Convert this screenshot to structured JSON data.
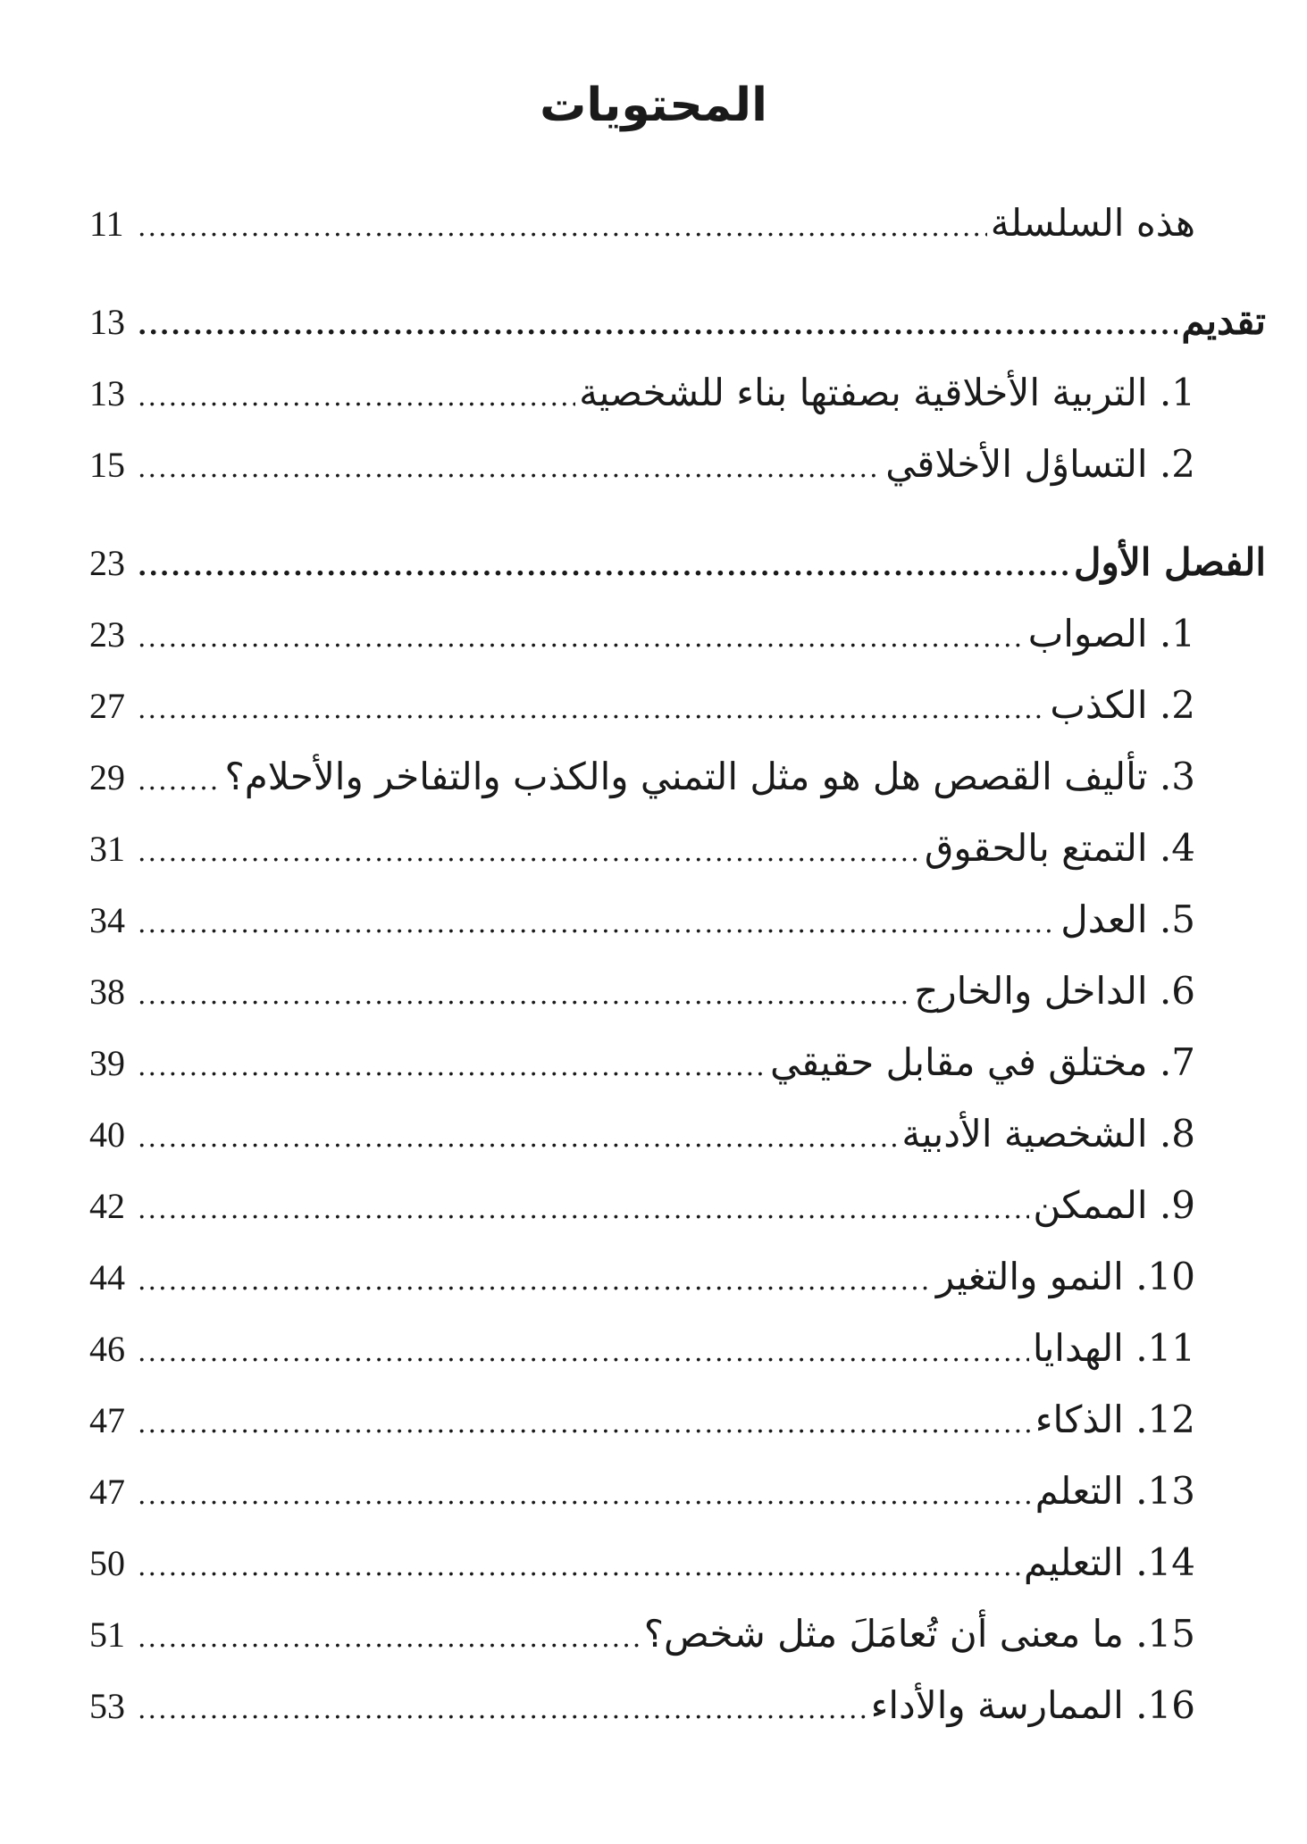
{
  "title": "المحتويات",
  "entries": [
    {
      "label": "هذه السلسلة",
      "page": "11",
      "type": "sub"
    },
    {
      "label": "تقديم",
      "page": "13",
      "type": "heading"
    },
    {
      "label": "1. التربية الأخلاقية بصفتها بناء للشخصية",
      "page": "13",
      "type": "sub"
    },
    {
      "label": "2. التساؤل الأخلاقي",
      "page": "15",
      "type": "sub"
    },
    {
      "label": "الفصل الأول",
      "page": "23",
      "type": "heading"
    },
    {
      "label": "1. الصواب",
      "page": "23",
      "type": "sub"
    },
    {
      "label": "2. الكذب",
      "page": "27",
      "type": "sub"
    },
    {
      "label": "3. تأليف القصص هل هو مثل التمني والكذب والتفاخر والأحلام؟",
      "page": "29",
      "type": "sub"
    },
    {
      "label": "4. التمتع بالحقوق",
      "page": "31",
      "type": "sub"
    },
    {
      "label": "5. العدل",
      "page": "34",
      "type": "sub"
    },
    {
      "label": "6. الداخل والخارج",
      "page": "38",
      "type": "sub"
    },
    {
      "label": "7. مختلق في مقابل حقيقي",
      "page": "39",
      "type": "sub"
    },
    {
      "label": "8. الشخصية الأدبية",
      "page": "40",
      "type": "sub"
    },
    {
      "label": "9. الممكن",
      "page": "42",
      "type": "sub"
    },
    {
      "label": "10. النمو والتغير",
      "page": "44",
      "type": "sub"
    },
    {
      "label": "11. الهدايا",
      "page": "46",
      "type": "sub"
    },
    {
      "label": "12. الذكاء",
      "page": "47",
      "type": "sub"
    },
    {
      "label": "13. التعلم",
      "page": "47",
      "type": "sub"
    },
    {
      "label": "14. التعليم",
      "page": "50",
      "type": "sub"
    },
    {
      "label": "15. ما معنى أن تُعامَلَ مثل شخص؟",
      "page": "51",
      "type": "sub"
    },
    {
      "label": "16. الممارسة والأداء",
      "page": "53",
      "type": "sub"
    }
  ]
}
